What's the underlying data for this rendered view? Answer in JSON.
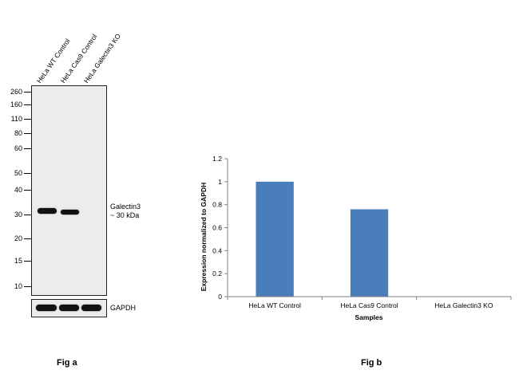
{
  "fig_a": {
    "caption": "Fig a",
    "lanes": [
      "HeLa WT Control",
      "HeLa Cas9 Control",
      "HeLa Galectin3 KO"
    ],
    "mw_markers": [
      "260",
      "160",
      "110",
      "80",
      "60",
      "50",
      "40",
      "30",
      "20",
      "15",
      "10"
    ],
    "target_label": "Galectin3",
    "target_size": "~ 30 kDa",
    "loading_control": "GAPDH"
  },
  "fig_b": {
    "caption": "Fig b"
  },
  "chart_data": {
    "type": "bar",
    "title": "",
    "categories": [
      "HeLa WT Control",
      "HeLa Cas9 Control",
      "HeLa Galectin3 KO"
    ],
    "values": [
      1.0,
      0.76,
      0.0
    ],
    "xlabel": "Samples",
    "ylabel": "Expression  normalized to GAPDH",
    "ylim": [
      0,
      1.2
    ],
    "yticks": [
      "0",
      "0.2",
      "0.4",
      "0.6",
      "0.8",
      "1",
      "1.2"
    ],
    "bar_color": "#4a7ebb"
  }
}
